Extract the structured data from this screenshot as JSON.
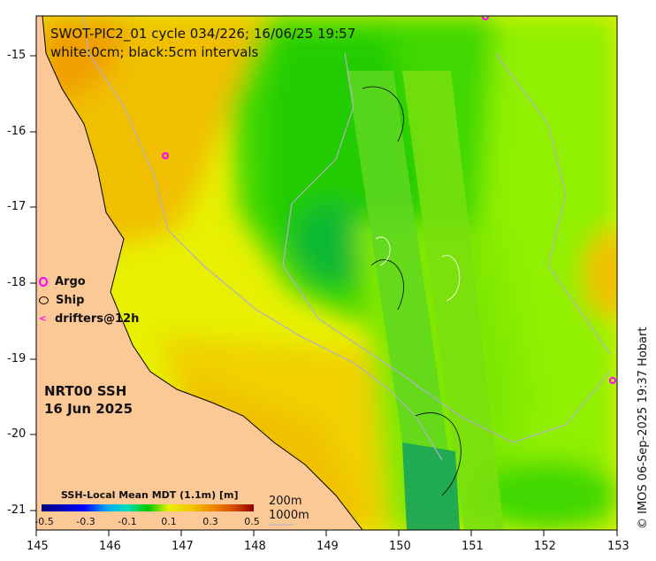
{
  "title": {
    "line1": "SWOT-PIC2_01 cycle 034/226; 16/06/25 19:57",
    "line2": "white:0cm; black:5cm intervals"
  },
  "legend": {
    "items": [
      {
        "label": "Argo",
        "icon": "argo-circle-icon",
        "color": "#ff00ff"
      },
      {
        "label": "Ship",
        "icon": "ship-circle-icon",
        "color": "#000000"
      },
      {
        "label": "drifters@12h",
        "icon": "drifter-arrow-icon",
        "color": "#ff00ff"
      }
    ]
  },
  "product": {
    "name": "NRT00 SSH",
    "date": "16 Jun 2025"
  },
  "colorbar": {
    "title": "SSH-Local Mean MDT (1.1m) [m]",
    "ticks": [
      "-0.5",
      "-0.3",
      "-0.1",
      "0.1",
      "0.3",
      "0.5"
    ],
    "range": [
      -0.5,
      0.5
    ]
  },
  "depth_contours": {
    "a": "200m",
    "b": "1000m"
  },
  "axes": {
    "x_ticks": [
      "145",
      "146",
      "147",
      "148",
      "149",
      "150",
      "151",
      "152",
      "153"
    ],
    "y_ticks": [
      "-15",
      "-16",
      "-17",
      "-18",
      "-19",
      "-20",
      "-21"
    ]
  },
  "credit": "© IMOS 06-Sep-2025 19:37 Hobart",
  "colors": {
    "land": "#fcc896",
    "argo": "#ff00ff"
  }
}
